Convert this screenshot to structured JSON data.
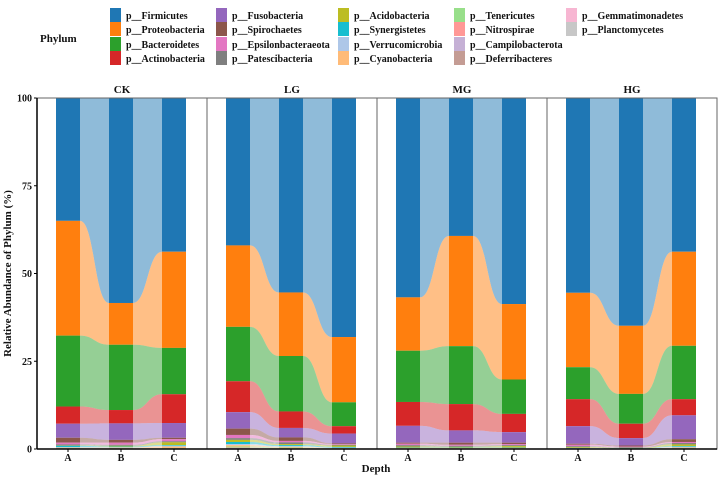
{
  "chart_data": {
    "type": "bar",
    "subtype": "stacked-alluvial",
    "ylabel": "Relative Abundance of Phylum (%)",
    "xlabel": "Depth",
    "ylim": [
      0,
      100
    ],
    "yticks": [
      0,
      25,
      50,
      75,
      100
    ],
    "legend_title": "Phylum",
    "legend_placement": "top",
    "categories": [
      "A",
      "B",
      "C"
    ],
    "phyla": [
      {
        "name": "p__Firmicutes",
        "color": "#1f77b4"
      },
      {
        "name": "p__Proteobacteria",
        "color": "#ff7f0e"
      },
      {
        "name": "p__Bacteroidetes",
        "color": "#2ca02c"
      },
      {
        "name": "p__Actinobacteria",
        "color": "#d62728"
      },
      {
        "name": "p__Fusobacteria",
        "color": "#9467bd"
      },
      {
        "name": "p__Spirochaetes",
        "color": "#8c564b"
      },
      {
        "name": "p__Epsilonbacteraeota",
        "color": "#e377c2"
      },
      {
        "name": "p__Patescibacteria",
        "color": "#7f7f7f"
      },
      {
        "name": "p__Acidobacteria",
        "color": "#bcbd22"
      },
      {
        "name": "p__Synergistetes",
        "color": "#17becf"
      },
      {
        "name": "p__Verrucomicrobia",
        "color": "#aec7e8"
      },
      {
        "name": "p__Cyanobacteria",
        "color": "#ffbb78"
      },
      {
        "name": "p__Tenericutes",
        "color": "#98df8a"
      },
      {
        "name": "p__Nitrospirae",
        "color": "#ff9896"
      },
      {
        "name": "p__Campilobacterota",
        "color": "#c5b0d5"
      },
      {
        "name": "p__Deferribacteres",
        "color": "#c49c94"
      },
      {
        "name": "p__Gemmatimonadetes",
        "color": "#f7b6d2"
      },
      {
        "name": "p__Planctomycetes",
        "color": "#c7c7c7"
      }
    ],
    "panels": [
      {
        "name": "CK",
        "samples": [
          [
            35.0,
            32.7,
            20.2,
            4.9,
            4.0,
            1.4,
            0.5,
            0.3,
            0.1,
            0.4,
            0.1,
            0.1,
            0.1,
            0.1,
            0.05,
            0.05,
            0,
            0
          ],
          [
            58.4,
            11.9,
            18.6,
            3.8,
            4.7,
            0.8,
            0.6,
            0.3,
            0.2,
            0.2,
            0.1,
            0.1,
            0.1,
            0.1,
            0.05,
            0.05,
            0,
            0
          ],
          [
            43.8,
            27.4,
            13.2,
            8.2,
            4.2,
            0.4,
            0.6,
            0.3,
            0.8,
            0.2,
            0.2,
            0.4,
            0.1,
            0.1,
            0.05,
            0.05,
            0,
            0
          ]
        ]
      },
      {
        "name": "LG",
        "samples": [
          [
            42.0,
            23.2,
            15.5,
            8.8,
            4.7,
            1.8,
            0.9,
            0.5,
            0.6,
            0.6,
            0.3,
            0.4,
            0.3,
            0.1,
            0.1,
            0.1,
            0.1,
            0
          ],
          [
            55.4,
            18.1,
            15.8,
            4.7,
            2.7,
            1.0,
            0.4,
            0.5,
            0.3,
            0.3,
            0.2,
            0.2,
            0.2,
            0.1,
            0.05,
            0.05,
            0,
            0
          ],
          [
            68.1,
            18.6,
            6.8,
            2.1,
            2.8,
            0.2,
            0.2,
            0.2,
            0.4,
            0.2,
            0.1,
            0.1,
            0.1,
            0.05,
            0.05,
            0,
            0,
            0
          ]
        ]
      },
      {
        "name": "MG",
        "samples": [
          [
            56.8,
            15.2,
            14.6,
            6.8,
            4.8,
            0.3,
            0.4,
            0.4,
            0.3,
            0.1,
            0.1,
            0.1,
            0.05,
            0.05,
            0,
            0,
            0,
            0
          ],
          [
            39.3,
            31.4,
            16.5,
            7.5,
            3.5,
            0.6,
            0.3,
            0.3,
            0.2,
            0.1,
            0.1,
            0.1,
            0.05,
            0.05,
            0,
            0,
            0,
            0
          ],
          [
            58.7,
            21.5,
            9.8,
            5.2,
            3.0,
            0.4,
            0.3,
            0.3,
            0.4,
            0.1,
            0.1,
            0.1,
            0.05,
            0.05,
            0,
            0,
            0,
            0
          ]
        ]
      },
      {
        "name": "HG",
        "samples": [
          [
            55.5,
            21.2,
            9.1,
            7.7,
            5.0,
            0.3,
            0.4,
            0.3,
            0.2,
            0.1,
            0.1,
            0.05,
            0.05,
            0,
            0,
            0,
            0,
            0
          ],
          [
            64.9,
            19.4,
            8.5,
            4.1,
            2.1,
            0.3,
            0.2,
            0.2,
            0.1,
            0.1,
            0.05,
            0.05,
            0,
            0,
            0,
            0,
            0,
            0
          ],
          [
            43.8,
            26.8,
            15.2,
            4.6,
            6.8,
            0.8,
            0.3,
            0.4,
            0.5,
            0.2,
            0.2,
            0.2,
            0.1,
            0.05,
            0.05,
            0,
            0,
            0
          ]
        ]
      }
    ]
  }
}
